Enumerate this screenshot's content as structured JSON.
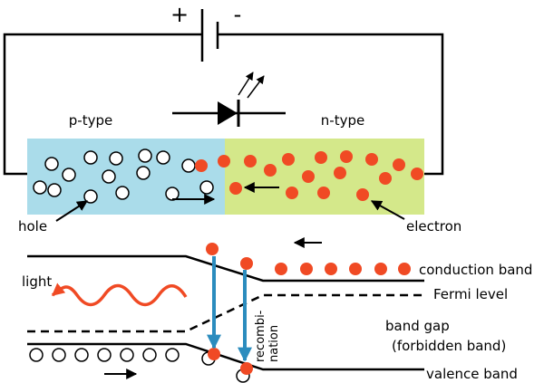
{
  "circuit": {
    "positive": "+",
    "negative": "-"
  },
  "regions": {
    "p_type": "p-type",
    "n_type": "n-type"
  },
  "labels": {
    "hole": "hole",
    "electron": "electron",
    "light": "light"
  },
  "band_diagram": {
    "conduction_band": "conduction band",
    "fermi_level": "Fermi level",
    "band_gap": "band gap",
    "forbidden_band": "(forbidden band)",
    "valence_band": "valence band",
    "recombination_1": "recombi-",
    "recombination_2": "nation"
  }
}
